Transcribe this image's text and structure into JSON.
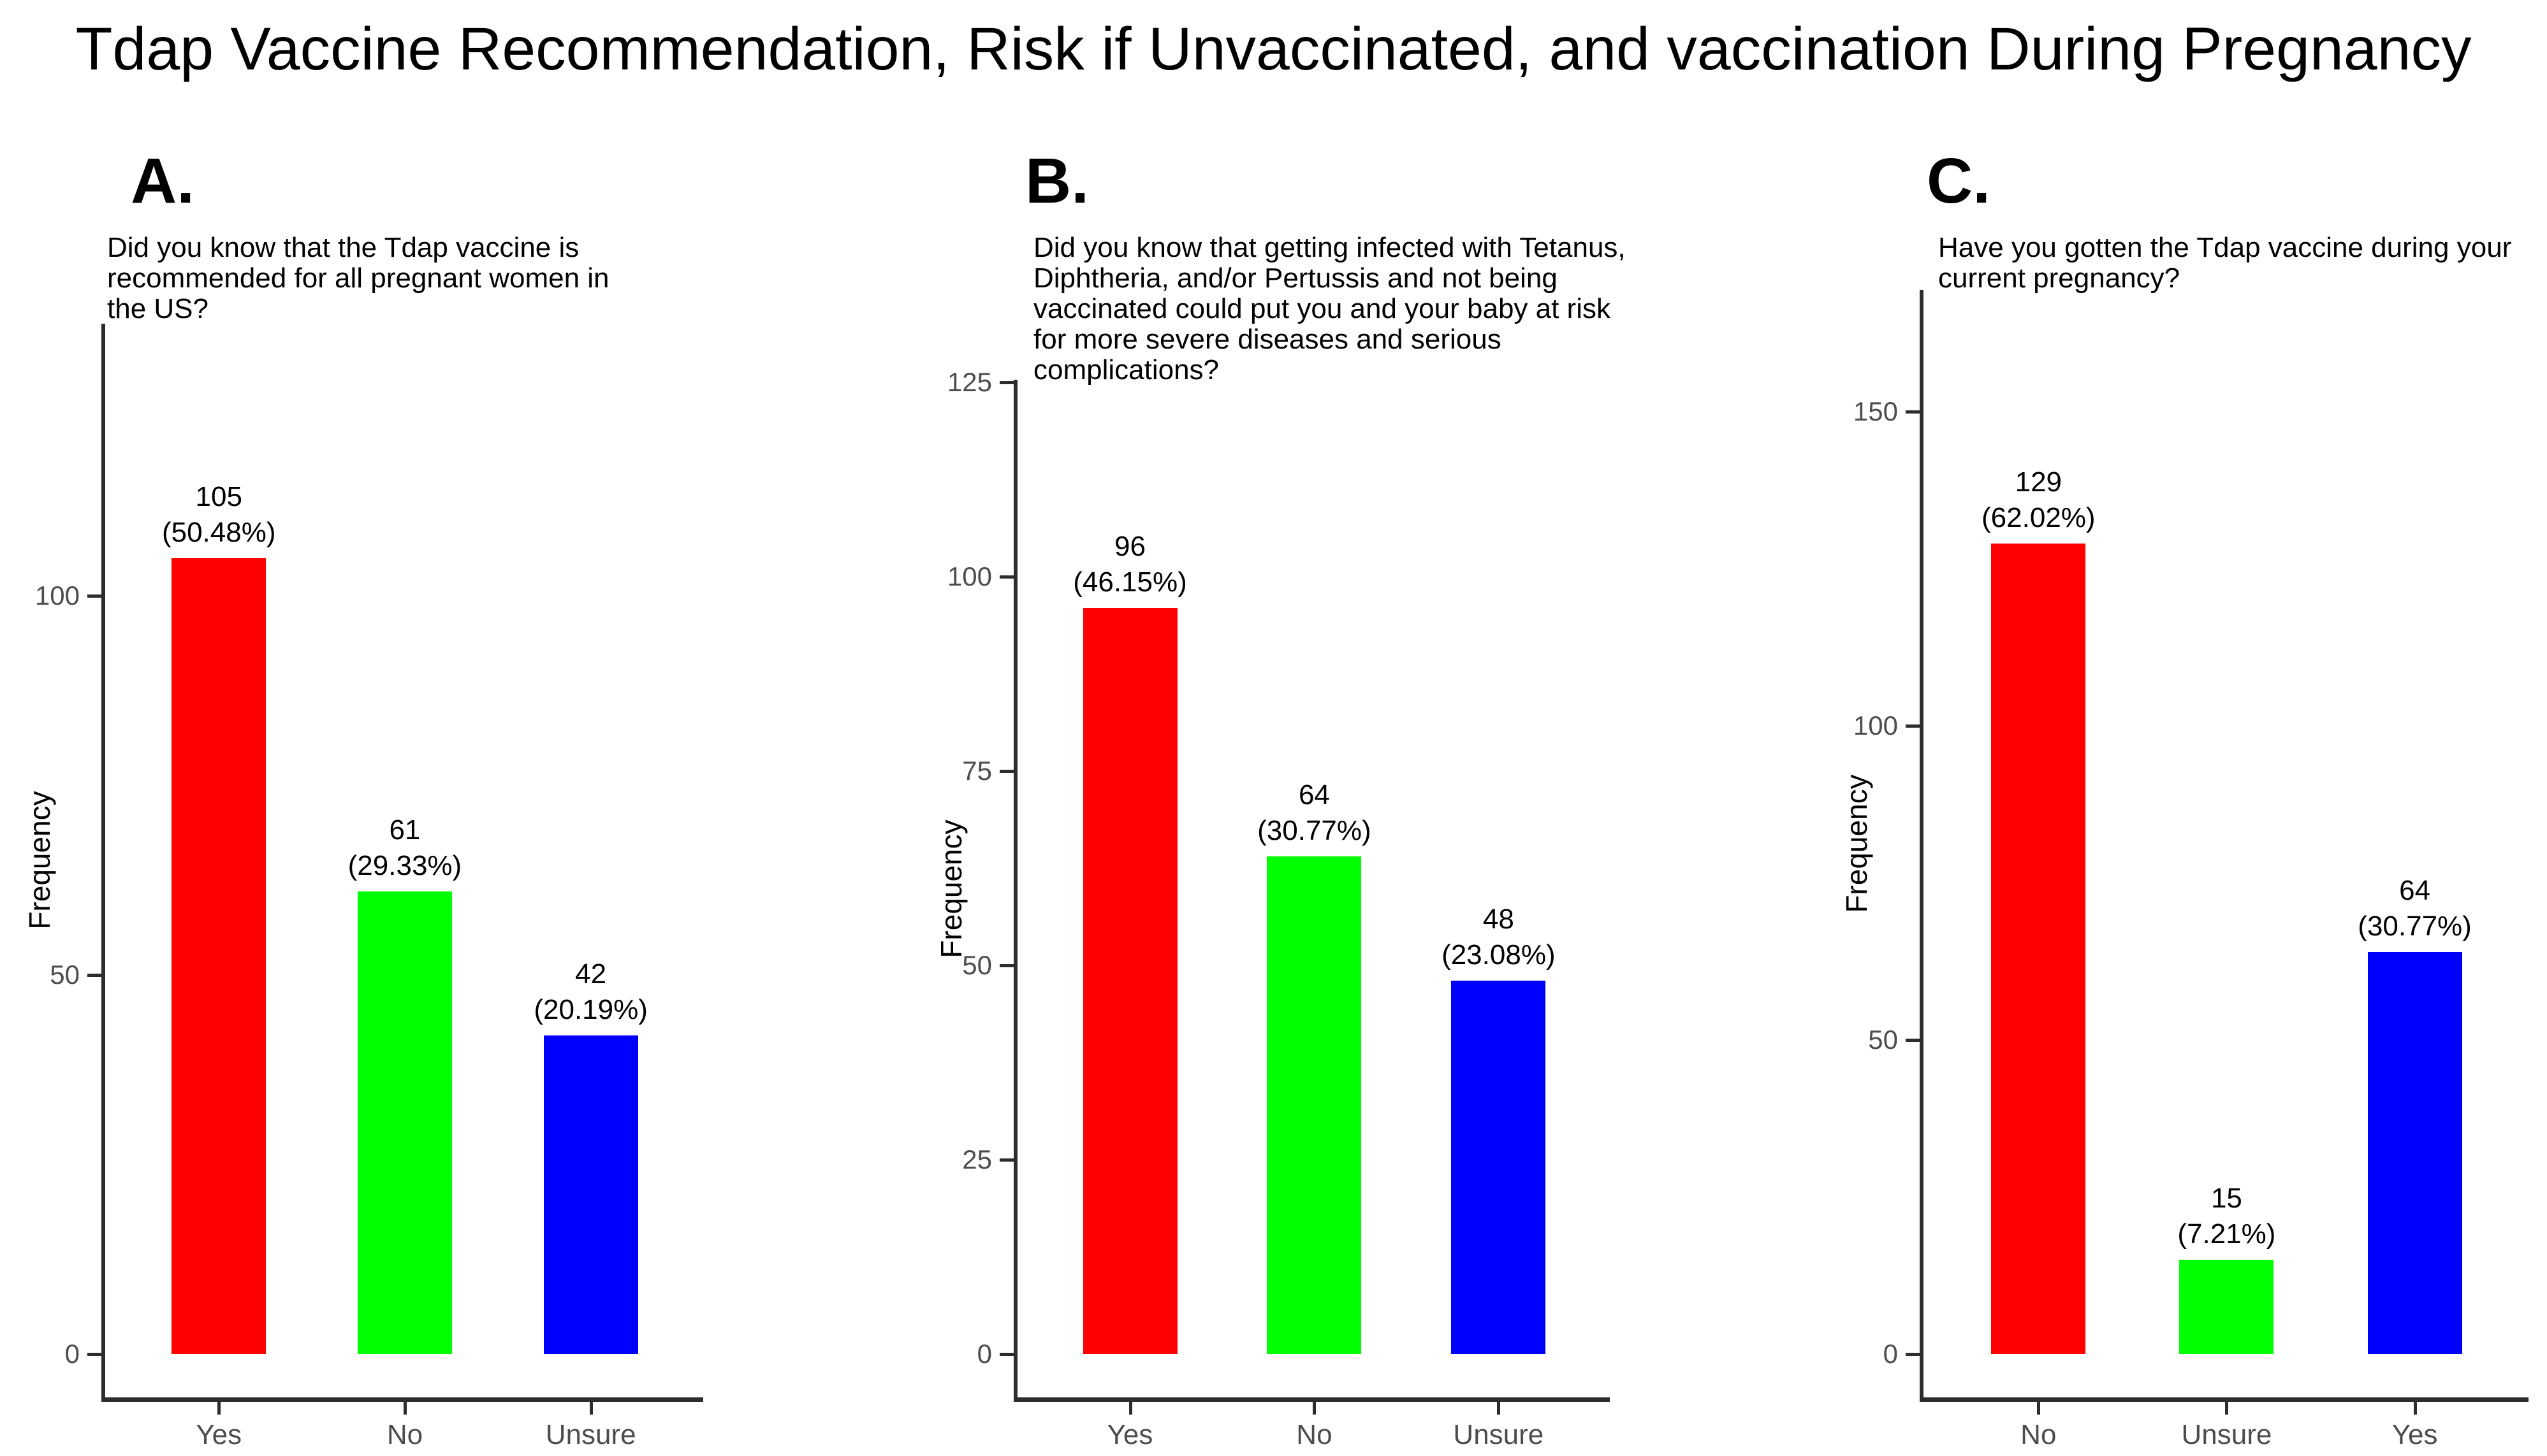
{
  "title": "Tdap Vaccine Recommendation, Risk if Unvaccinated, and vaccination During Pregnancy",
  "chart_data": [
    {
      "type": "bar",
      "panel_label": "A.",
      "question": "Did you know that the Tdap vaccine is recommended for all pregnant women in the US?",
      "categories": [
        "Yes",
        "No",
        "Unsure"
      ],
      "values": [
        105,
        61,
        42
      ],
      "percent_labels": [
        "(50.48%)",
        "(29.33%)",
        "(20.19%)"
      ],
      "colors": [
        "#ff0000",
        "#00ff00",
        "#0000ff"
      ],
      "ylabel": "Frequency",
      "yticks": [
        0,
        50,
        100
      ],
      "ylim": [
        0,
        130
      ],
      "grid": "off",
      "legend": "none"
    },
    {
      "type": "bar",
      "panel_label": "B.",
      "question": "Did you know that getting infected with Tetanus, Diphtheria, and/or Pertussis and not being vaccinated could put you and your baby at risk for more severe diseases and serious complications?",
      "categories": [
        "Yes",
        "No",
        "Unsure"
      ],
      "values": [
        96,
        64,
        48
      ],
      "percent_labels": [
        "(46.15%)",
        "(30.77%)",
        "(23.08%)"
      ],
      "colors": [
        "#ff0000",
        "#00ff00",
        "#0000ff"
      ],
      "ylabel": "Frequency",
      "yticks": [
        0,
        25,
        50,
        75,
        100,
        125
      ],
      "ylim": [
        0,
        125
      ],
      "grid": "off",
      "legend": "none"
    },
    {
      "type": "bar",
      "panel_label": "C.",
      "question": "Have you gotten the Tdap vaccine during your current pregnancy?",
      "categories": [
        "No",
        "Unsure",
        "Yes"
      ],
      "values": [
        129,
        15,
        64
      ],
      "percent_labels": [
        "(62.02%)",
        "(7.21%)",
        "(30.77%)"
      ],
      "colors": [
        "#ff0000",
        "#00ff00",
        "#0000ff"
      ],
      "ylabel": "Frequency",
      "yticks": [
        0,
        50,
        100,
        150
      ],
      "ylim": [
        0,
        155
      ],
      "grid": "off",
      "legend": "none"
    }
  ]
}
